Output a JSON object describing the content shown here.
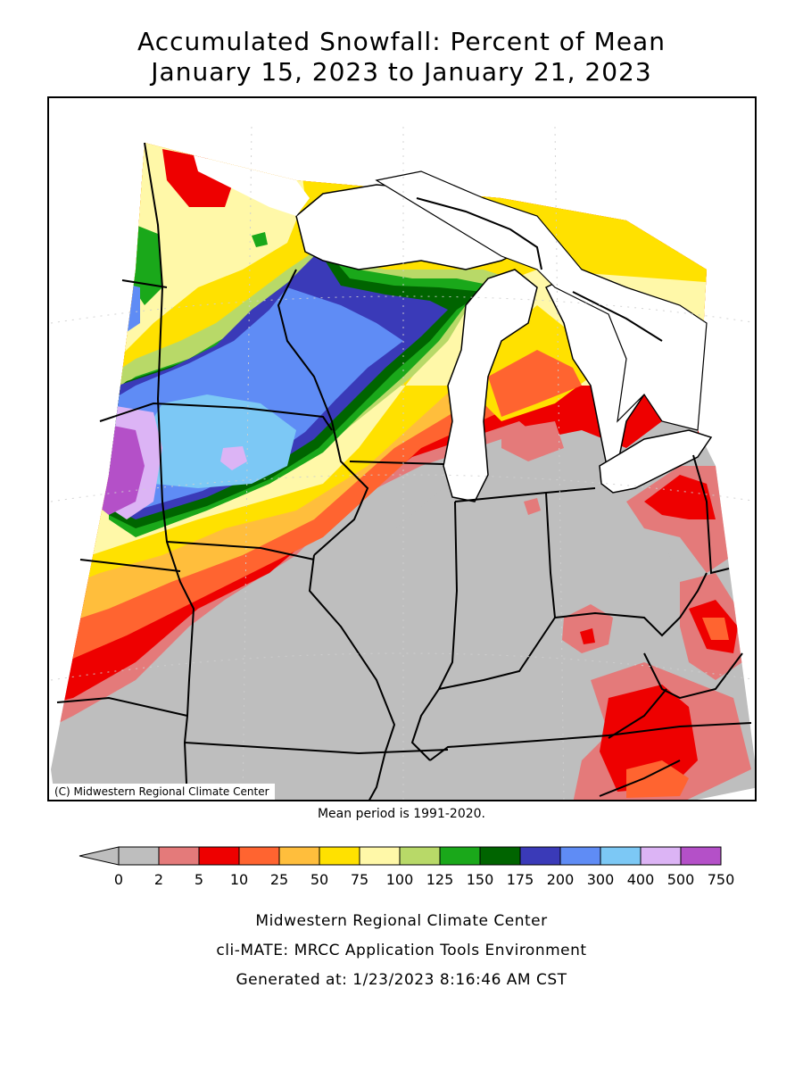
{
  "title": {
    "line1": "Accumulated Snowfall: Percent of Mean",
    "line2": "January 15, 2023 to January 21, 2023"
  },
  "map": {
    "credit": "(C) Midwestern Regional Climate Center",
    "mean_note": "Mean period is 1991-2020."
  },
  "legend": {
    "labels": [
      "0",
      "2",
      "5",
      "10",
      "25",
      "50",
      "75",
      "100",
      "125",
      "150",
      "175",
      "200",
      "300",
      "400",
      "500",
      "750"
    ],
    "colors": [
      "#bebebe",
      "#e47a7a",
      "#ee0000",
      "#ff6430",
      "#ffbe3c",
      "#ffe100",
      "#fff8a8",
      "#b8d968",
      "#1aa81a",
      "#006400",
      "#3a3ab8",
      "#5f8cf5",
      "#7cc8f5",
      "#dcb4f5",
      "#b450c8"
    ]
  },
  "footer": {
    "line1": "Midwestern Regional Climate Center",
    "line2": "cli-MATE: MRCC Application Tools Environment",
    "line3": "Generated at: 1/23/2023 8:16:46 AM CST"
  }
}
